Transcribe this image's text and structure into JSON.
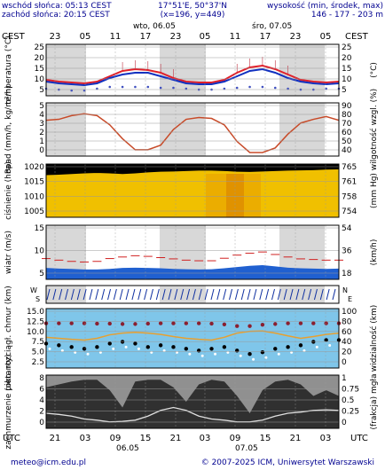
{
  "header": {
    "sunrise": "wschód słońca: 05:13 CEST",
    "sunset": "zachód słońca: 20:15 CEST",
    "coords": "17°51'E, 50°37'N",
    "grid": "(x=196, y=449)",
    "elev_label": "wysokość (min, środek, max)",
    "elev_values": "146 - 177 - 203 m"
  },
  "footer": {
    "email": "meteo@icm.edu.pl",
    "copyright": "© 2007-2025 ICM, Uniwersytet Warszawski"
  },
  "time_axis": {
    "tz_left": "CEST",
    "tz_right": "CEST",
    "tz_bottom_left": "UTC",
    "tz_bottom_right": "UTC",
    "top_hours": [
      "23",
      "05",
      "11",
      "17",
      "23",
      "05",
      "11",
      "17",
      "23",
      "05"
    ],
    "bottom_hours": [
      "21",
      "03",
      "09",
      "15",
      "21",
      "03",
      "09",
      "15",
      "21",
      "03"
    ],
    "days_top": [
      "wto, 06.05",
      "śro, 07.05"
    ],
    "days_bottom": [
      "06.05",
      "07.05"
    ]
  },
  "colors": {
    "night_band": "#d8d8d8",
    "temp_max": "#e0202a",
    "temp_mid": "#1030c0",
    "rain_line": "#c84a28",
    "pressure_fill": "#f0c000",
    "wind_blue": "#2060d0",
    "vis_orange": "#e8a030",
    "cloud_dark": "#303030"
  },
  "chart_data": [
    {
      "type": "line",
      "title": "",
      "ylabel": "temperatura (°C)",
      "ylim": [
        0,
        25
      ],
      "yticks": [
        "25",
        "20",
        "15",
        "10",
        "5"
      ],
      "yticks_right": [
        "25",
        "20",
        "15",
        "10",
        "5"
      ],
      "unit_right": "(°C)",
      "series": [
        {
          "values": [
            7,
            6,
            5.5,
            5,
            6,
            9,
            12,
            13,
            12.5,
            11,
            8,
            6,
            5.5,
            5.5,
            7,
            11,
            14,
            15,
            13,
            10,
            7,
            6,
            5.5,
            6
          ]
        },
        {
          "values": [
            6,
            5,
            4.5,
            4,
            5,
            8,
            10,
            11,
            11,
            9,
            7,
            5,
            4.5,
            4.5,
            6,
            9,
            12,
            13,
            11,
            8,
            6,
            5,
            4.5,
            5
          ]
        },
        {
          "values": [
            2,
            1.5,
            1,
            1,
            2,
            3,
            3,
            3,
            3,
            2.5,
            2.5,
            2,
            1.5,
            1.5,
            2,
            2.5,
            3,
            3,
            2.5,
            2,
            1.5,
            1.5,
            2,
            2
          ]
        }
      ]
    },
    {
      "type": "line",
      "ylabel": "opad (mm/h, kg/m²/h)",
      "ylabel_right": "wilgotność wzgl. (%)",
      "ylim": [
        0,
        5
      ],
      "yticks": [
        "5",
        "4",
        "3",
        "2",
        "1",
        "0"
      ],
      "yticks_right": [
        "90",
        "80",
        "70",
        "60",
        "50",
        "40"
      ],
      "series": [
        {
          "values": [
            3.5,
            3.6,
            4.0,
            4.2,
            4.0,
            3.0,
            1.5,
            0.3,
            0.3,
            0.8,
            2.5,
            3.6,
            3.8,
            3.7,
            3.0,
            1.2,
            0.0,
            0.0,
            0.5,
            2.0,
            3.2,
            3.6,
            3.9,
            3.5
          ]
        }
      ]
    },
    {
      "type": "area",
      "ylabel": "ciśnienie (hPa)",
      "ylabel_right": "(mm Hg)",
      "ylim": [
        1000,
        1020
      ],
      "yticks": [
        "1020",
        "1015",
        "1010",
        "1005"
      ],
      "yticks_right": [
        "765",
        "761",
        "758",
        "754"
      ],
      "series": [
        {
          "values": [
            1017,
            1017.2,
            1017.5,
            1017.8,
            1018,
            1017.8,
            1017.5,
            1017.8,
            1018.2,
            1018.5,
            1018.6,
            1018.8,
            1019,
            1019,
            1018.8,
            1018.5,
            1018.4,
            1018.6,
            1018.8,
            1019,
            1019.1,
            1019.2,
            1019.4,
            1019.5
          ]
        }
      ]
    },
    {
      "type": "bar",
      "ylabel": "wiatr (m/s)",
      "ylabel_right": "(km/h)",
      "ylim": [
        0,
        15
      ],
      "yticks": [
        "15",
        "10",
        "5"
      ],
      "yticks_right": [
        "54",
        "36",
        "18"
      ],
      "series": [
        {
          "values": [
            2.5,
            2.3,
            2.2,
            2.0,
            2.0,
            2.2,
            2.5,
            2.6,
            2.5,
            2.4,
            2.2,
            2.1,
            2.0,
            2.1,
            2.4,
            2.8,
            3.2,
            3.4,
            3.0,
            2.6,
            2.4,
            2.3,
            2.2,
            2.3
          ]
        },
        {
          "values": [
            5.5,
            5.0,
            4.6,
            4.4,
            4.6,
            5.5,
            6.0,
            6.4,
            6.2,
            5.8,
            5.4,
            5.0,
            4.8,
            4.8,
            5.6,
            6.6,
            7.2,
            7.6,
            6.8,
            6.0,
            5.4,
            5.2,
            5.0,
            5.0
          ]
        }
      ]
    },
    {
      "type": "scatter",
      "ylabel": "pion. rozciągł. chmur (km)",
      "ylabel_right": "widzialność (km)",
      "ylim": [
        0,
        15
      ],
      "yticks": [
        "15.0",
        "12.5",
        "10.0",
        "7.5",
        "5.0",
        "2.5"
      ],
      "yticks_right": [
        "100",
        "80",
        "60",
        "40",
        "20",
        "0"
      ],
      "series": [
        {
          "values": [
            11.8,
            11.8,
            11.8,
            11.8,
            11.7,
            11.7,
            11.6,
            11.6,
            11.7,
            11.8,
            11.8,
            11.8,
            11.8,
            11.7,
            11.5,
            11.0,
            11.0,
            11.4,
            11.6,
            11.8,
            11.8,
            11.8,
            11.8,
            11.8
          ]
        },
        {
          "values": [
            7.8,
            7.5,
            7.2,
            7.0,
            7.5,
            8.5,
            9.0,
            9.2,
            9.0,
            8.6,
            8.0,
            7.5,
            7.2,
            7.0,
            7.8,
            9.0,
            9.5,
            9.6,
            9.0,
            8.2,
            7.5,
            8.0,
            8.6,
            9.0
          ]
        },
        {
          "values": [
            6.0,
            5.5,
            5.0,
            4.5,
            5.0,
            6.0,
            6.5,
            6.0,
            5.0,
            5.5,
            5.0,
            4.5,
            4.0,
            4.5,
            5.0,
            4.0,
            3.0,
            3.5,
            4.5,
            5.0,
            5.5,
            6.5,
            7.0,
            7.0
          ]
        }
      ]
    },
    {
      "type": "area",
      "ylabel": "zachmurzenie (oktanty)",
      "ylabel_right": "(frakcja) mgła",
      "ylim": [
        0,
        8
      ],
      "yticks": [
        "8",
        "6",
        "4",
        "2",
        "0"
      ],
      "yticks_right": [
        "1",
        "0.75",
        "0.5",
        "0.25",
        "0"
      ],
      "series": [
        {
          "values": [
            6.5,
            7.0,
            7.5,
            7.8,
            7.8,
            6.0,
            3.0,
            7.5,
            7.8,
            7.8,
            6.5,
            4.0,
            7.0,
            7.8,
            7.5,
            5.0,
            2.0,
            6.0,
            7.5,
            7.8,
            7.0,
            5.0,
            6.0,
            5.0
          ]
        },
        {
          "values": [
            2.0,
            1.8,
            1.5,
            1.0,
            0.8,
            0.5,
            0.6,
            0.8,
            1.5,
            2.5,
            3.0,
            2.5,
            1.5,
            1.0,
            0.8,
            0.5,
            0.5,
            0.8,
            1.5,
            2.0,
            2.2,
            2.5,
            2.6,
            2.5
          ]
        }
      ]
    }
  ]
}
